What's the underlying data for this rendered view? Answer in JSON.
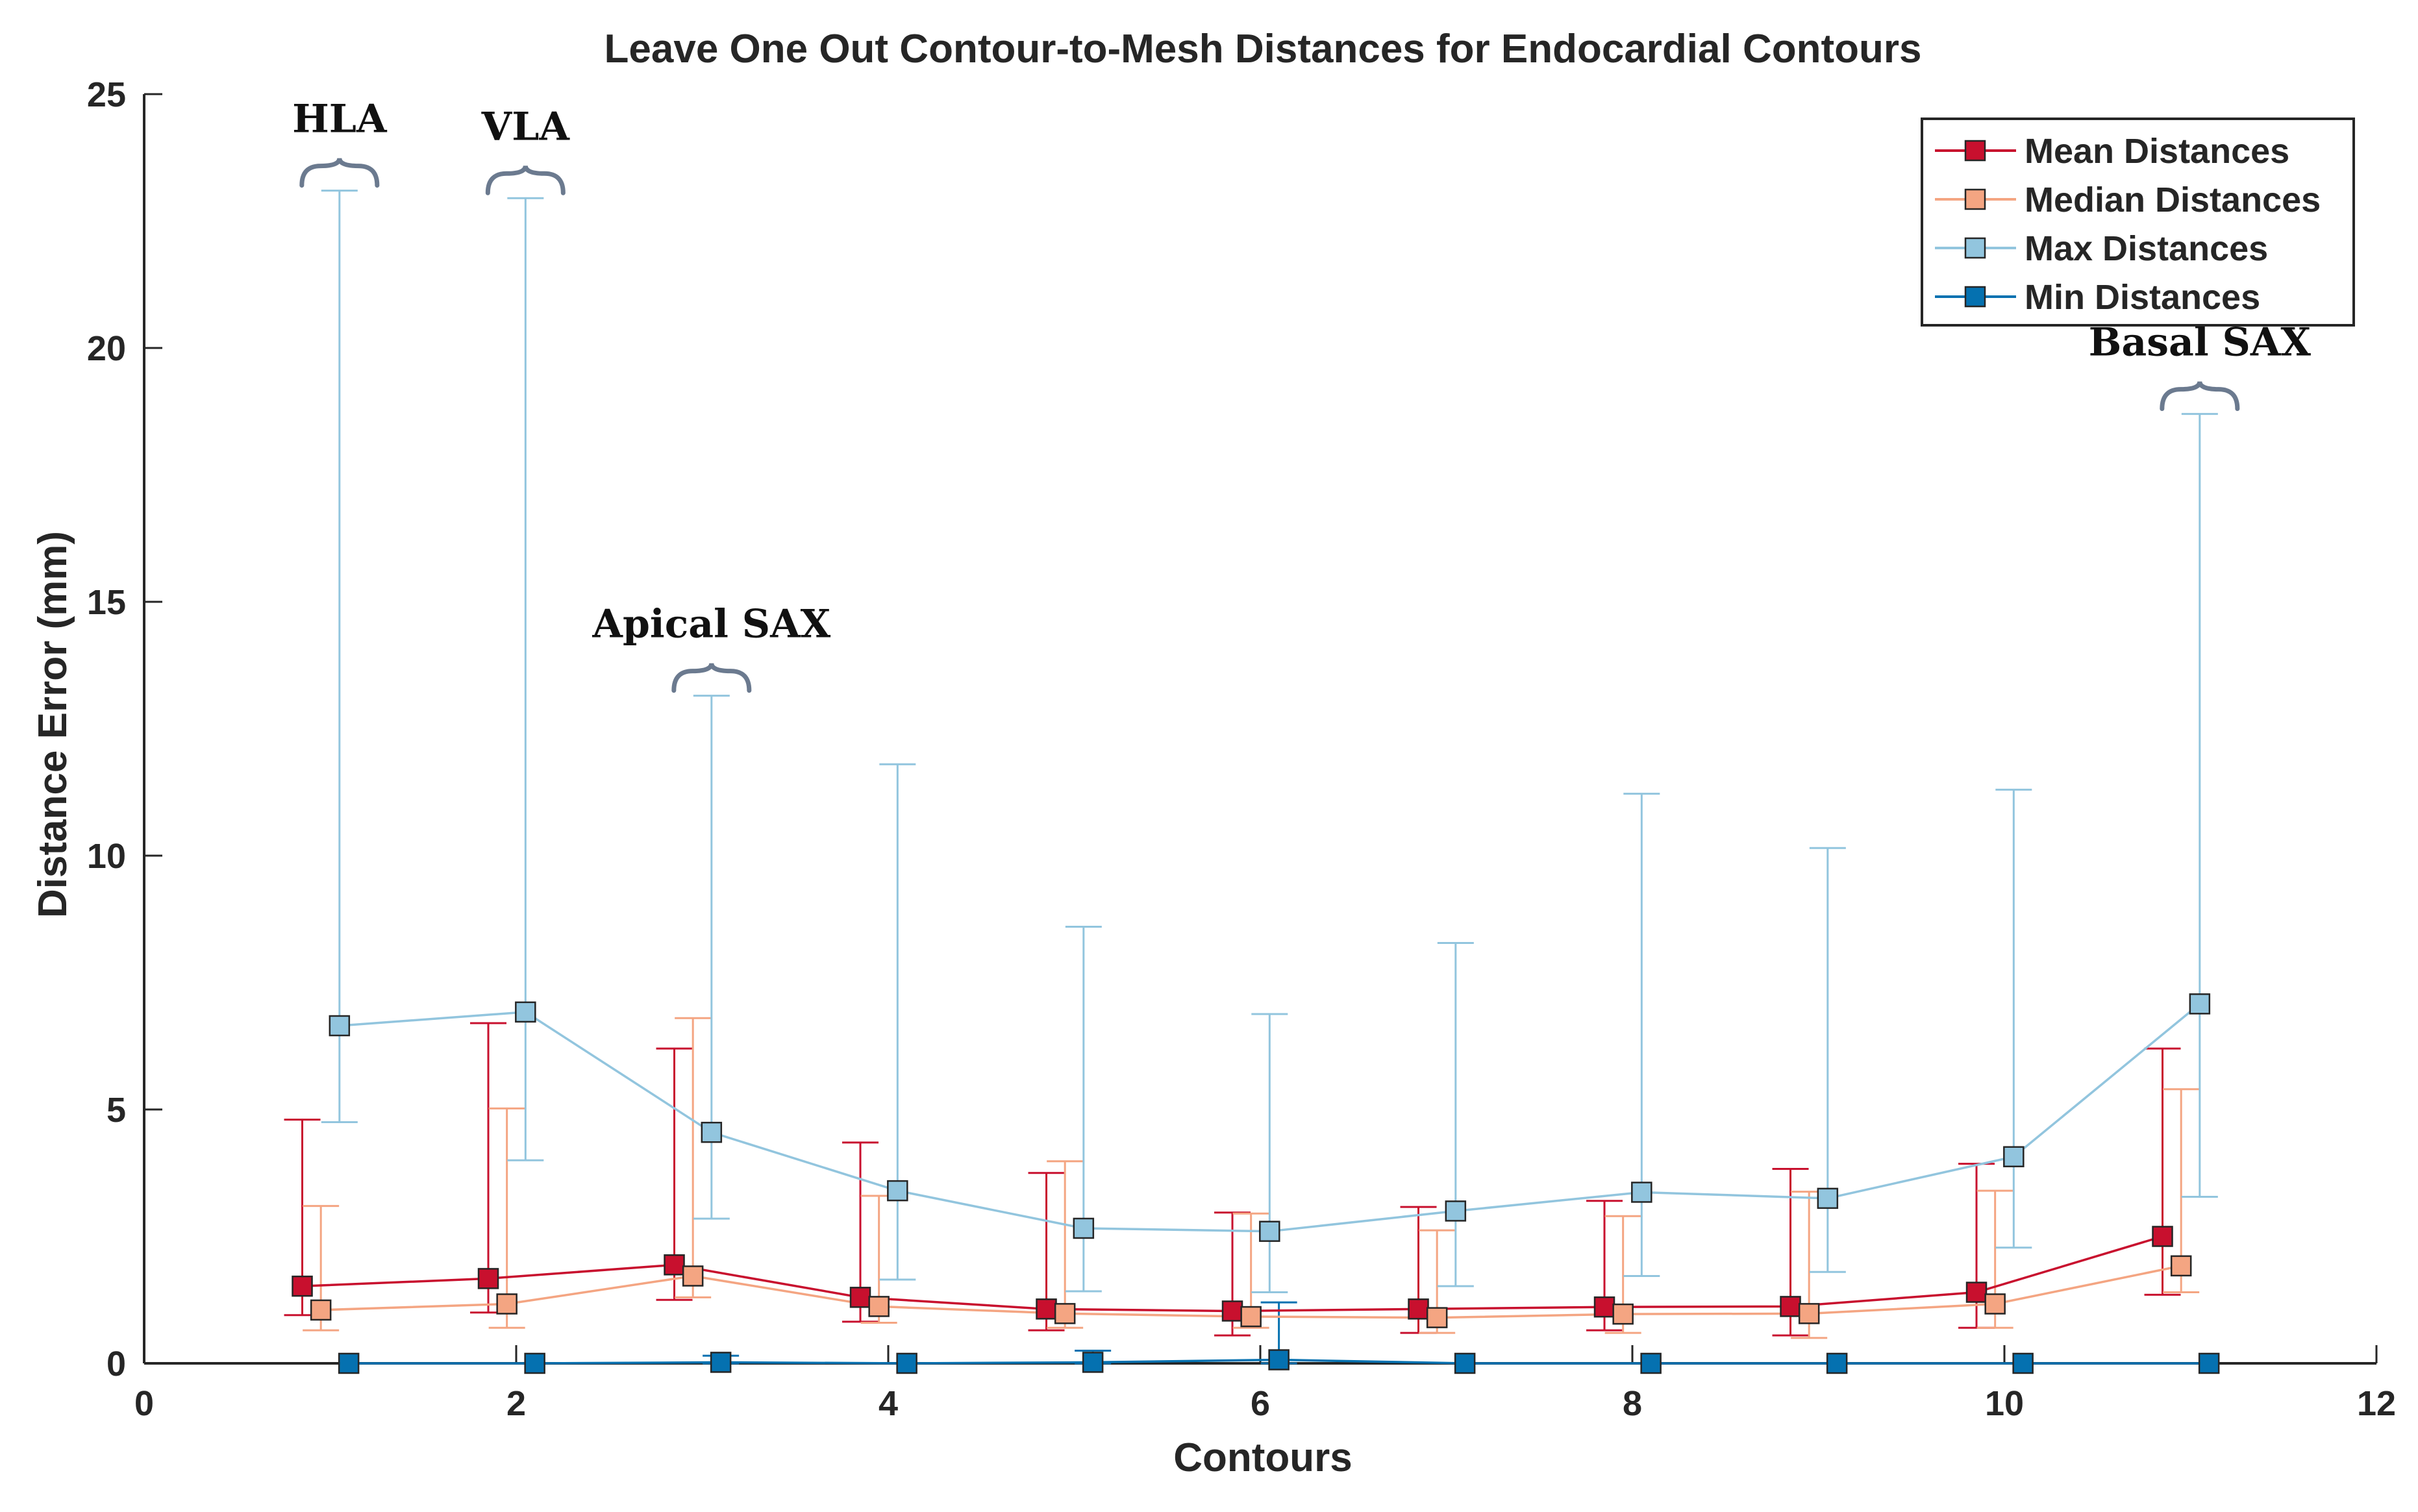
{
  "chart_data": {
    "type": "line",
    "title": "Leave One Out Contour-to-Mesh Distances for Endocardial Contours",
    "xlabel": "Contours",
    "ylabel": "Distance Error (mm)",
    "xlim": [
      0,
      12
    ],
    "ylim": [
      0,
      25
    ],
    "xticks": [
      0,
      2,
      4,
      6,
      8,
      10,
      12
    ],
    "yticks": [
      0,
      5,
      10,
      15,
      20,
      25
    ],
    "legend_position": "top-right",
    "series": [
      {
        "name": "Mean Distances",
        "color": "#c8102e",
        "marker_color": "#c8102e",
        "offset": -0.15,
        "x": [
          1,
          2,
          3,
          4,
          5,
          6,
          7,
          8,
          9,
          10,
          11
        ],
        "values": [
          1.52,
          1.67,
          1.94,
          1.3,
          1.07,
          1.03,
          1.07,
          1.11,
          1.12,
          1.4,
          2.5
        ],
        "err_low": [
          0.95,
          1.0,
          1.25,
          0.82,
          0.65,
          0.55,
          0.6,
          0.65,
          0.55,
          0.7,
          1.35
        ],
        "err_high": [
          4.8,
          6.7,
          6.2,
          4.35,
          3.75,
          2.97,
          3.08,
          3.2,
          3.83,
          3.93,
          6.2
        ]
      },
      {
        "name": "Median Distances",
        "color": "#f4a582",
        "marker_color": "#f4a582",
        "offset": -0.05,
        "x": [
          1,
          2,
          3,
          4,
          5,
          6,
          7,
          8,
          9,
          10,
          11
        ],
        "values": [
          1.05,
          1.17,
          1.72,
          1.12,
          0.98,
          0.92,
          0.9,
          0.97,
          0.98,
          1.17,
          1.92
        ],
        "err_low": [
          0.65,
          0.7,
          1.3,
          0.8,
          0.7,
          0.7,
          0.6,
          0.6,
          0.5,
          0.7,
          1.4
        ],
        "err_high": [
          3.1,
          5.02,
          6.8,
          3.3,
          3.98,
          2.95,
          2.62,
          2.9,
          3.38,
          3.4,
          5.4
        ]
      },
      {
        "name": "Max Distances",
        "color": "#92c5de",
        "marker_color": "#92c5de",
        "offset": 0.05,
        "x": [
          1,
          2,
          3,
          4,
          5,
          6,
          7,
          8,
          9,
          10,
          11
        ],
        "values": [
          6.65,
          6.92,
          4.55,
          3.4,
          2.66,
          2.6,
          3.0,
          3.37,
          3.25,
          4.07,
          7.08
        ],
        "err_low": [
          4.75,
          4.0,
          2.85,
          1.65,
          1.42,
          1.4,
          1.52,
          1.72,
          1.8,
          2.28,
          3.28
        ],
        "err_high": [
          23.1,
          22.95,
          13.15,
          11.8,
          8.6,
          6.88,
          8.28,
          11.22,
          10.15,
          11.3,
          18.7
        ]
      },
      {
        "name": "Min Distances",
        "color": "#0571b0",
        "marker_color": "#0571b0",
        "offset": 0.1,
        "x": [
          1,
          2,
          3,
          4,
          5,
          6,
          7,
          8,
          9,
          10,
          11
        ],
        "values": [
          0.0,
          0.0,
          0.02,
          0.0,
          0.02,
          0.07,
          0.0,
          0.0,
          0.0,
          0.0,
          0.0
        ],
        "err_low": [
          0,
          0,
          0,
          0,
          0,
          0,
          0,
          0,
          0,
          0,
          0
        ],
        "err_high": [
          0.0,
          0.0,
          0.15,
          0.0,
          0.25,
          1.2,
          0.0,
          0.0,
          0.0,
          0.0,
          0.0
        ]
      }
    ],
    "annotations": [
      {
        "text": "HLA",
        "x": 1.05,
        "y": 23.1
      },
      {
        "text": "VLA",
        "x": 2.05,
        "y": 22.95
      },
      {
        "text": "Apical SAX",
        "x": 3.05,
        "y": 13.15
      },
      {
        "text": "Basal SAX",
        "x": 11.05,
        "y": 18.7
      }
    ]
  }
}
